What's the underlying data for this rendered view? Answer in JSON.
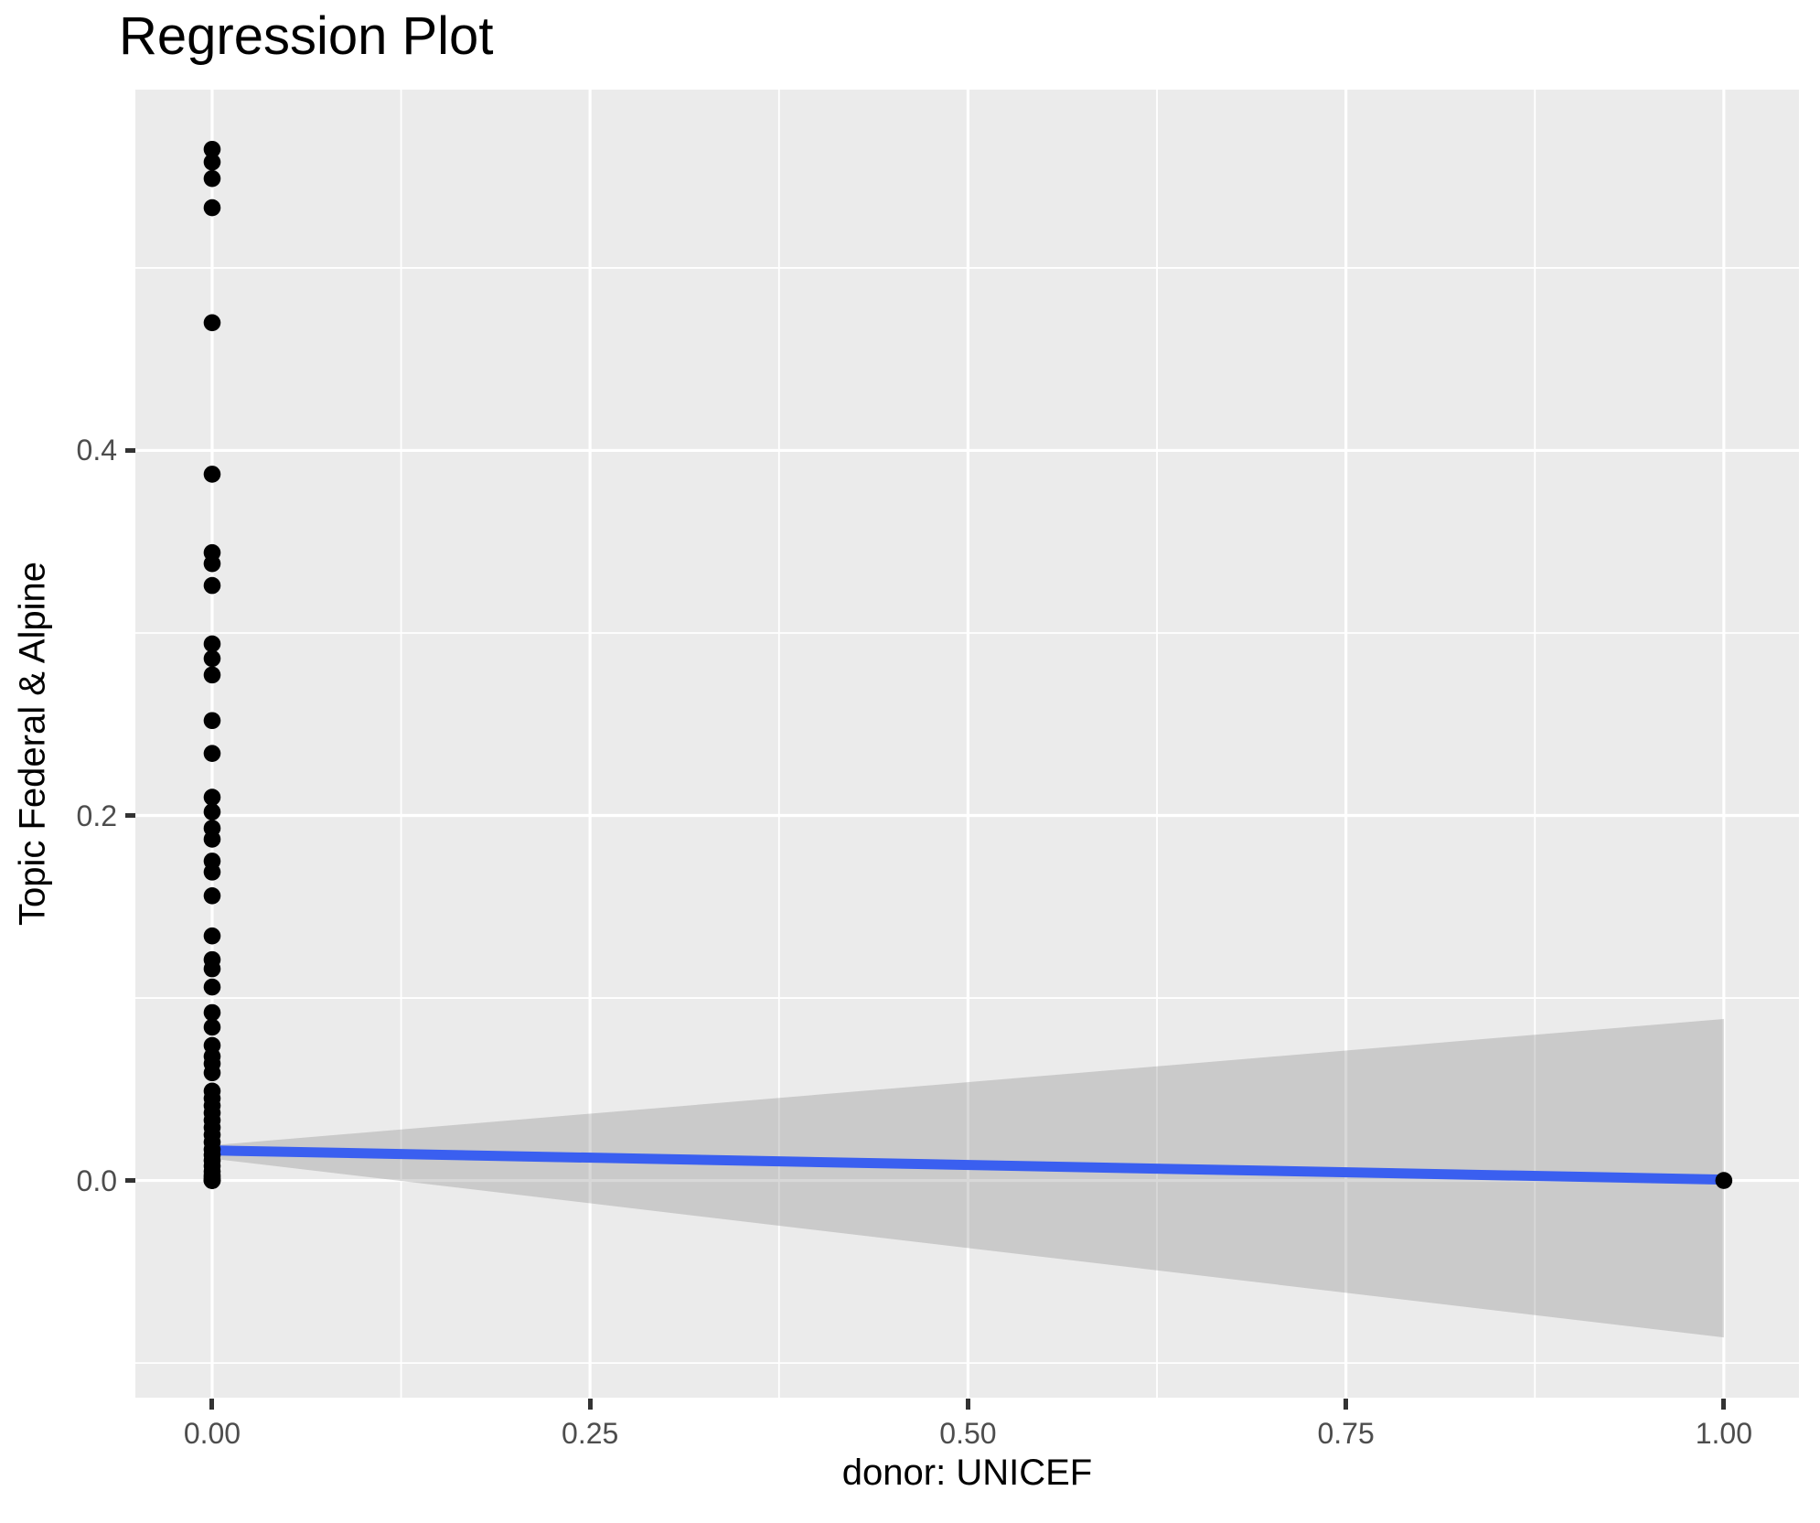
{
  "chart_data": {
    "type": "scatter",
    "title": "Regression Plot",
    "xlabel": "donor: UNICEF",
    "ylabel": "Topic Federal & Alpine",
    "x_domain": [
      -0.0508,
      1.0497
    ],
    "y_domain": [
      -0.119,
      0.5977
    ],
    "x_ticks": {
      "values": [
        0,
        0.25,
        0.5,
        0.75,
        1.0
      ],
      "labels": [
        "0.00",
        "0.25",
        "0.50",
        "0.75",
        "1.00"
      ]
    },
    "y_ticks": {
      "values": [
        0,
        0.2,
        0.4
      ],
      "labels": [
        "0.0",
        "0.2",
        "0.4"
      ]
    },
    "x_minor": [
      0.125,
      0.375,
      0.625,
      0.875
    ],
    "y_minor": [
      -0.1,
      0.1,
      0.3,
      0.5
    ],
    "grid": true,
    "legend": "none",
    "series": [
      {
        "name": "observations",
        "x": [
          0,
          0,
          0,
          0,
          0,
          0,
          0,
          0,
          0,
          0,
          0,
          0,
          0,
          0,
          0,
          0,
          0,
          0,
          0,
          0,
          0,
          0,
          0,
          0,
          0,
          0,
          0,
          0,
          0,
          0,
          0,
          0,
          0,
          0,
          0,
          0,
          0,
          0,
          0,
          0,
          0,
          0,
          0,
          0,
          0,
          0,
          0,
          0,
          0,
          0,
          1
        ],
        "y": [
          0.565,
          0.558,
          0.549,
          0.533,
          0.47,
          0.387,
          0.344,
          0.338,
          0.326,
          0.294,
          0.286,
          0.277,
          0.252,
          0.234,
          0.21,
          0.202,
          0.193,
          0.187,
          0.175,
          0.169,
          0.156,
          0.134,
          0.121,
          0.116,
          0.106,
          0.092,
          0.084,
          0.074,
          0.068,
          0.064,
          0.059,
          0.049,
          0.045,
          0.041,
          0.037,
          0.033,
          0.029,
          0.025,
          0.021,
          0.017,
          0.014,
          0.011,
          0.008,
          0.005,
          0.003,
          0.002,
          0.001,
          0.0,
          0.0,
          0.0,
          0.0
        ]
      }
    ],
    "regression_line": {
      "x": [
        0,
        1
      ],
      "y": [
        0.0165,
        0.0005
      ]
    },
    "confidence_band": {
      "x": [
        0,
        1
      ],
      "upper": [
        0.0193,
        0.0885
      ],
      "lower": [
        0.012,
        -0.086
      ]
    },
    "colors": {
      "panel_bg": "#EBEBEB",
      "grid": "#FFFFFF",
      "point": "#000000",
      "regression_line": "#3A5FF0",
      "ci_fill": "rgba(127,127,127,0.30)",
      "tick_label": "#4D4D4D",
      "axis_title": "#000000",
      "title": "#000000",
      "tick_mark": "#333333"
    }
  }
}
